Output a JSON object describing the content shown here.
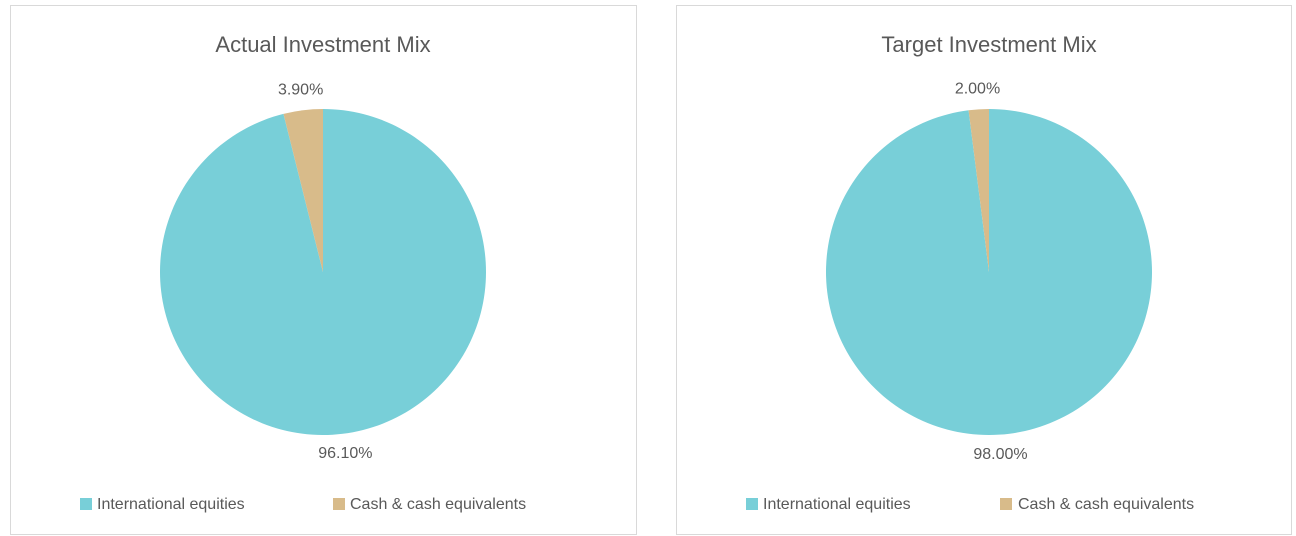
{
  "chart_data": [
    {
      "type": "pie",
      "title": "Actual Investment Mix",
      "categories": [
        "International equities",
        "Cash & cash equivalents"
      ],
      "values": [
        96.1,
        3.9
      ],
      "value_labels": [
        "96.10%",
        "3.90%"
      ],
      "colors": [
        "#78cfd8",
        "#d8bb8a"
      ]
    },
    {
      "type": "pie",
      "title": "Target Investment Mix",
      "categories": [
        "International equities",
        "Cash & cash equivalents"
      ],
      "values": [
        98,
        2
      ],
      "value_labels": [
        "98.00%",
        "2.00%"
      ],
      "colors": [
        "#78cfd8",
        "#d8bb8a"
      ]
    }
  ]
}
